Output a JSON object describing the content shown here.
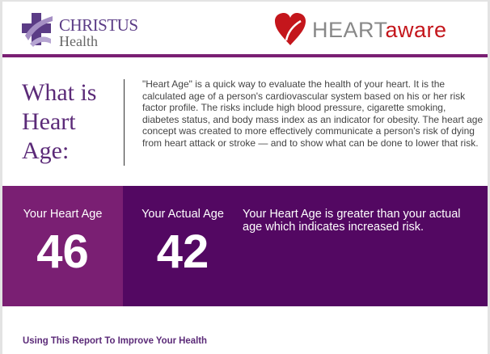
{
  "header": {
    "christus_logo": {
      "line1": "CHRISTUS",
      "line2": "Health"
    },
    "heartaware_logo": {
      "part1": "HEART",
      "part2": "aware"
    }
  },
  "intro": {
    "title": "What is Heart Age:",
    "body": "\"Heart Age\" is a quick way to evaluate the health of your heart. It is the calculated age of a person's cardiovascular system based on his or her risk factor profile. The risks include high blood pressure, cigarette smoking, diabetes status, and body mass index as an indicator for obesity. The heart age concept was created to more effectively communicate a person's risk of dying from heart attack or stroke — and to show what can be done to lower that risk."
  },
  "results": {
    "heart_age_label": "Your Heart Age",
    "heart_age": "46",
    "actual_age_label": "Your Actual Age",
    "actual_age": "42",
    "message": "Your Heart Age is greater than your actual age which indicates increased risk."
  },
  "footer": {
    "section_title": "Using This Report To Improve Your Health"
  },
  "colors": {
    "purple_light": "#7a1f73",
    "purple_dark": "#530862",
    "title": "#5b2a78",
    "brand_red": "#c4161c"
  }
}
